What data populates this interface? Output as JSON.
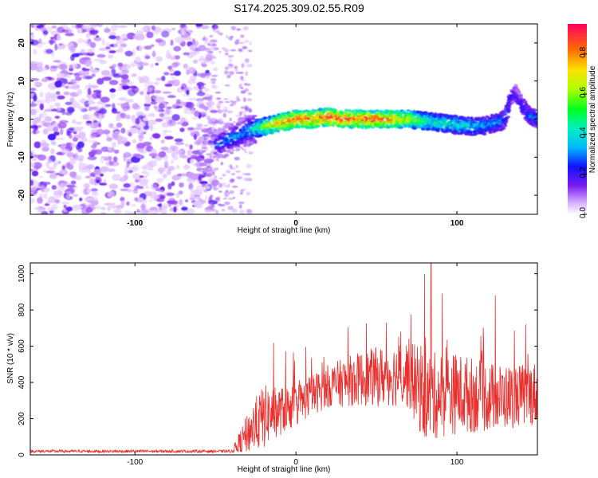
{
  "title": "S174.2025.309.02.55.R09",
  "colors": {
    "snr_line": "#e8302e",
    "axis": "#000000"
  },
  "chart_data": [
    {
      "type": "heatmap",
      "name": "spectrogram",
      "xlabel": "Height of straight line (km)",
      "ylabel": "Frequency (Hz)",
      "xlim": [
        -165,
        150
      ],
      "ylim": [
        -25,
        25
      ],
      "xticks": [
        -100,
        0,
        100
      ],
      "yticks": [
        -20,
        -10,
        0,
        10,
        20
      ],
      "colorbar": {
        "label": "Normalized spectral amplitude",
        "range": [
          0.0,
          0.95
        ],
        "ticks": [
          0.0,
          0.2,
          0.4,
          0.6,
          0.8
        ],
        "tick_labels": [
          "0.0",
          "0.2",
          "0.4",
          "0.6",
          "0.8"
        ]
      },
      "noise_region_km": [
        -165,
        -50
      ],
      "ridge": {
        "x": [
          -50,
          -45,
          -40,
          -35,
          -30,
          -25,
          -20,
          -15,
          -10,
          -5,
          0,
          10,
          20,
          30,
          40,
          50,
          60,
          70,
          80,
          90,
          100,
          110,
          120,
          125,
          130,
          133,
          136,
          140,
          145,
          150
        ],
        "y": [
          -7,
          -6,
          -5,
          -4,
          -3,
          -2.5,
          -2,
          -1.5,
          -1,
          -0.5,
          0,
          0,
          0.5,
          0,
          0,
          0,
          0,
          0,
          -0.5,
          -1,
          -1.5,
          -2,
          -1.5,
          -1,
          0,
          5,
          7,
          4,
          1,
          0
        ],
        "amplitude": [
          0.3,
          0.3,
          0.35,
          0.35,
          0.4,
          0.45,
          0.6,
          0.7,
          0.8,
          0.85,
          0.9,
          0.9,
          0.95,
          0.9,
          0.9,
          0.9,
          0.85,
          0.7,
          0.5,
          0.45,
          0.45,
          0.4,
          0.35,
          0.35,
          0.3,
          0.25,
          0.2,
          0.25,
          0.3,
          0.3
        ]
      }
    },
    {
      "type": "line",
      "name": "snr",
      "xlabel": "Height of straight line (km)",
      "ylabel": "SNR (10 * v/v)",
      "xlim": [
        -165,
        150
      ],
      "ylim": [
        0,
        1060
      ],
      "xticks": [
        -100,
        0,
        100
      ],
      "yticks": [
        0,
        200,
        400,
        600,
        800,
        1000
      ],
      "envelope": {
        "x": [
          -165,
          -40,
          -35,
          -30,
          -25,
          -20,
          -15,
          -10,
          -5,
          0,
          10,
          20,
          30,
          40,
          50,
          60,
          70,
          75,
          80,
          90,
          100,
          110,
          120,
          130,
          140,
          150
        ],
        "base": [
          20,
          20,
          60,
          120,
          170,
          210,
          230,
          240,
          260,
          270,
          330,
          380,
          400,
          420,
          430,
          440,
          450,
          380,
          320,
          330,
          340,
          330,
          320,
          320,
          330,
          340
        ],
        "spread": [
          8,
          8,
          90,
          150,
          200,
          240,
          200,
          180,
          170,
          150,
          150,
          160,
          180,
          200,
          220,
          230,
          260,
          300,
          330,
          320,
          300,
          280,
          260,
          240,
          230,
          240
        ]
      },
      "peak_value": 1060,
      "peak_x": 84
    }
  ]
}
